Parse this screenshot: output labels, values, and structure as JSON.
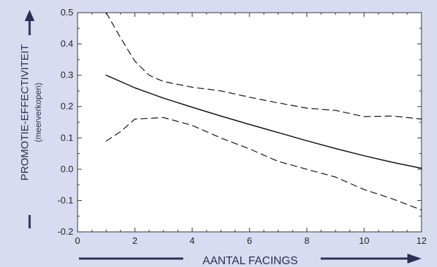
{
  "chart_data": {
    "type": "line",
    "xlabel": "AANTAL FACINGS",
    "ylabel": "PROMOTIE-EFFECTIVITEIT",
    "ylabel_sub": "(meerverkopen)",
    "xlim": [
      0,
      12
    ],
    "ylim": [
      -0.2,
      0.5
    ],
    "x_ticks": [
      0,
      2,
      4,
      6,
      8,
      10,
      12
    ],
    "y_ticks": [
      0.5,
      0.4,
      0.3,
      0.2,
      0.1,
      0.0,
      -0.1,
      -0.2
    ],
    "x_tick_labels": [
      "0",
      "2",
      "4",
      "6",
      "8",
      "10",
      "12"
    ],
    "y_tick_labels": [
      "0.5",
      "0.4",
      "0.3",
      "0.2",
      "0.1",
      "0.0",
      "-0.1",
      "-0.2"
    ],
    "grid": false,
    "series": [
      {
        "style": "solid",
        "x": [
          1,
          2,
          3,
          4,
          5,
          6,
          7,
          8,
          9,
          10,
          11,
          12
        ],
        "y": [
          0.3,
          0.26,
          0.227,
          0.198,
          0.17,
          0.143,
          0.117,
          0.091,
          0.066,
          0.043,
          0.022,
          0.003
        ]
      },
      {
        "style": "dashed",
        "x": [
          1,
          1.5,
          2,
          2.5,
          3,
          4,
          5,
          6,
          7,
          8,
          9,
          10,
          11,
          12
        ],
        "y": [
          0.5,
          0.42,
          0.345,
          0.3,
          0.28,
          0.262,
          0.25,
          0.23,
          0.212,
          0.195,
          0.188,
          0.168,
          0.17,
          0.16
        ]
      },
      {
        "style": "dashed",
        "x": [
          1,
          1.5,
          2,
          3,
          4,
          5,
          6,
          7,
          8,
          9,
          10,
          11,
          12
        ],
        "y": [
          0.09,
          0.12,
          0.16,
          0.165,
          0.14,
          0.1,
          0.065,
          0.025,
          0.0,
          -0.025,
          -0.065,
          -0.095,
          -0.13
        ]
      }
    ]
  }
}
